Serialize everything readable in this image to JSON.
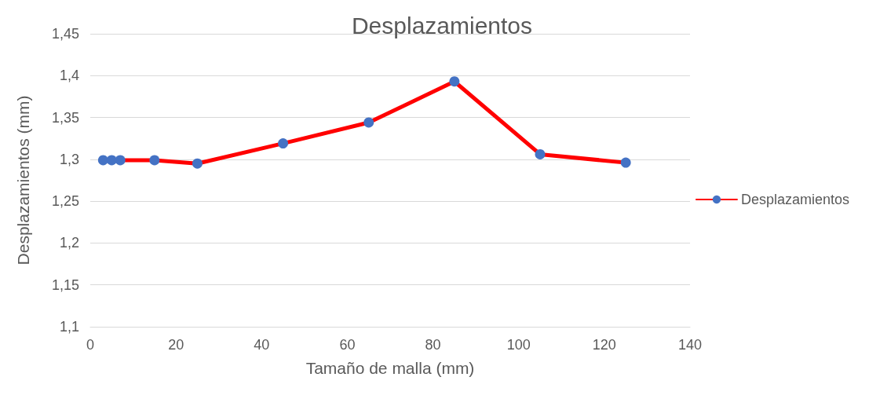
{
  "chart_data": {
    "type": "line",
    "title": "Desplazamientos",
    "xlabel": "Tamaño de malla (mm)",
    "ylabel": "Desplazamientos (mm)",
    "x": [
      3,
      5,
      7,
      15,
      25,
      45,
      65,
      85,
      105,
      125
    ],
    "series": [
      {
        "name": "Desplazamientos",
        "color": "#ff0000",
        "colors": [
          "#4472c4",
          "#4472c4",
          "#4472c4",
          "#4472c4",
          "#4472c4",
          "#4472c4",
          "#4472c4",
          "#4472c4",
          "#4472c4",
          "#4472c4"
        ],
        "values": [
          1.299,
          1.299,
          1.299,
          1.299,
          1.295,
          1.319,
          1.344,
          1.393,
          1.306,
          1.296
        ]
      }
    ],
    "xlim": [
      0,
      140
    ],
    "xticks": [
      0,
      20,
      40,
      60,
      80,
      100,
      120,
      140
    ],
    "ylim": [
      1.1,
      1.45
    ],
    "yticks": [
      {
        "value": 1.1,
        "label": "1,1"
      },
      {
        "value": 1.15,
        "label": "1,15"
      },
      {
        "value": 1.2,
        "label": "1,2"
      },
      {
        "value": 1.25,
        "label": "1,25"
      },
      {
        "value": 1.3,
        "label": "1,3"
      },
      {
        "value": 1.35,
        "label": "1,35"
      },
      {
        "value": 1.4,
        "label": "1,4"
      },
      {
        "value": 1.45,
        "label": "1,45"
      }
    ],
    "grid": "y",
    "legend": "right",
    "marker": "circle",
    "line_style": "solid"
  }
}
